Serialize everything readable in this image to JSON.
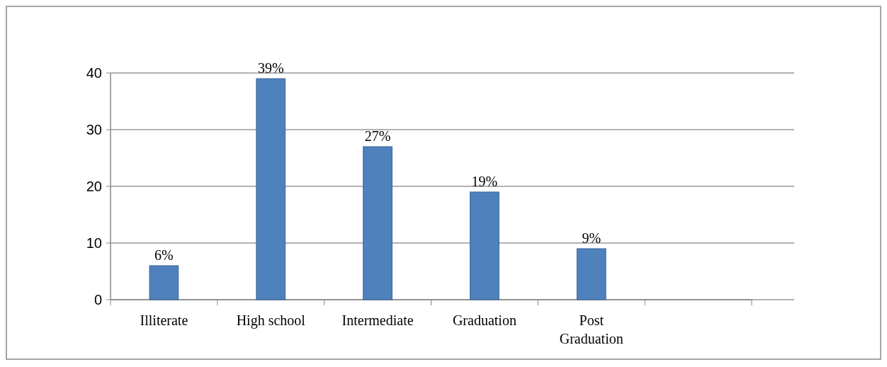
{
  "chart_data": {
    "type": "bar",
    "categories": [
      "Illiterate",
      "High school",
      "Intermediate",
      "Graduation",
      "Post Graduation",
      null
    ],
    "values": [
      6,
      39,
      27,
      19,
      9,
      null
    ],
    "value_labels": [
      "6%",
      "39%",
      "27%",
      "19%",
      "9%",
      null
    ],
    "color": "#4f81bd",
    "ylim": [
      0,
      40
    ],
    "yticks": [
      0,
      10,
      20,
      30,
      40
    ],
    "grid": "y"
  }
}
